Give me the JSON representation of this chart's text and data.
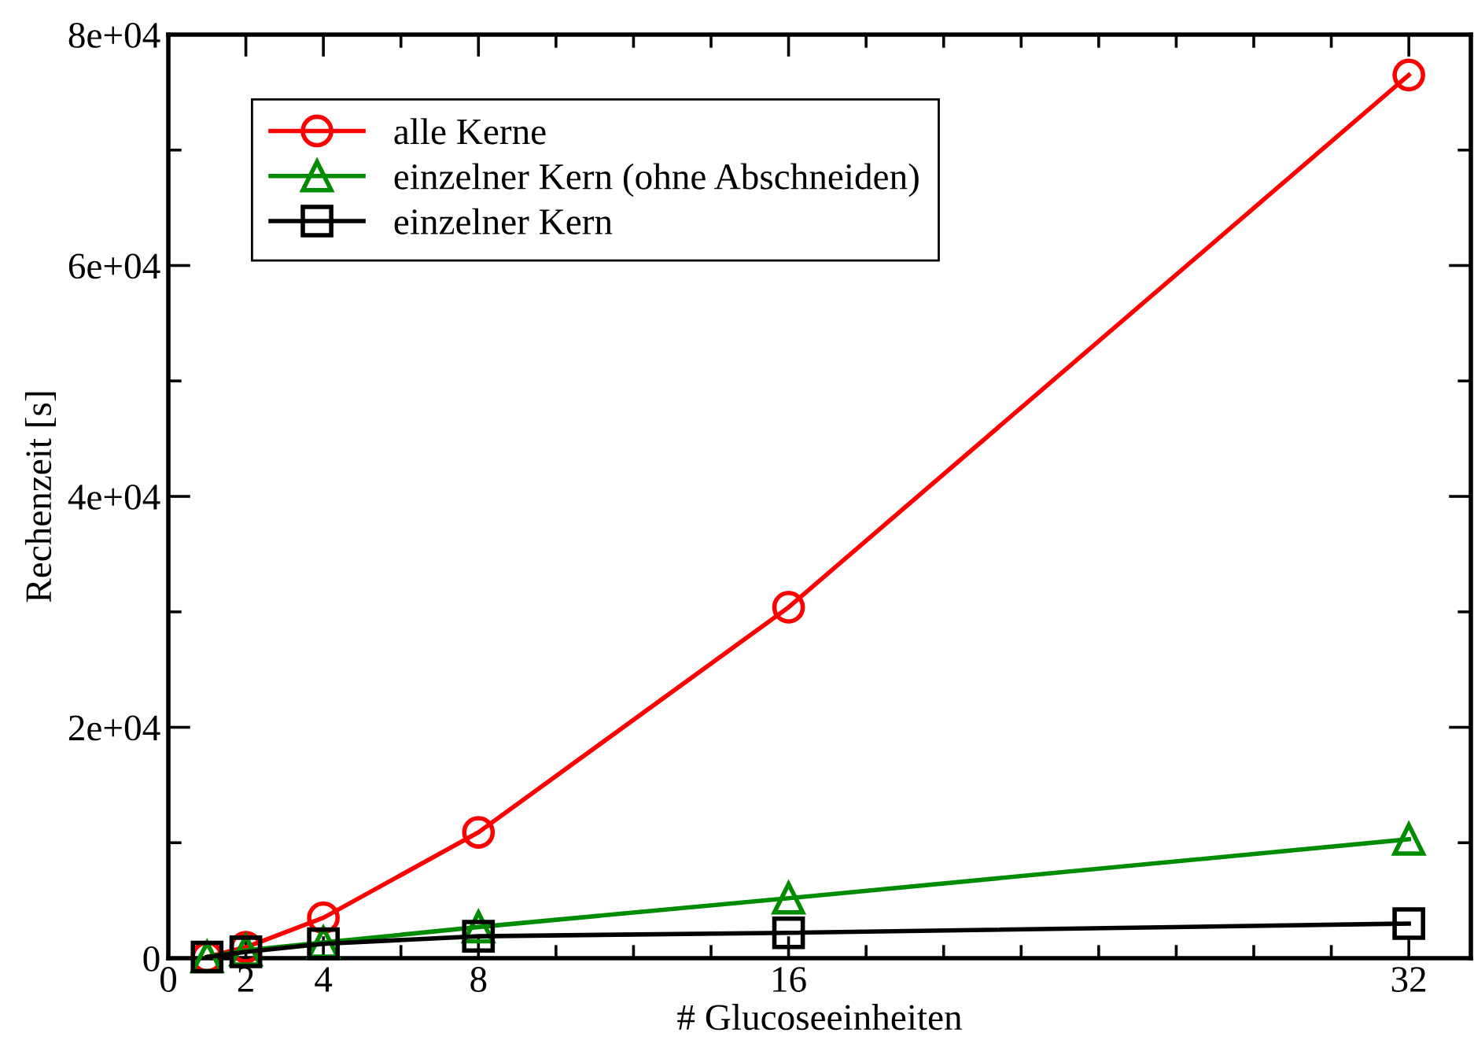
{
  "chart_data": {
    "type": "line",
    "xlabel": "# Glucoseeinheiten",
    "ylabel": "Rechenzeit [s]",
    "x": [
      1,
      2,
      4,
      8,
      16,
      32
    ],
    "series": [
      {
        "name": "alle Kerne",
        "color": "#ff0000",
        "marker": "circle",
        "values": [
          100,
          950,
          3500,
          10900,
          30400,
          76500
        ]
      },
      {
        "name": "einzelner Kern (ohne Abschneiden)",
        "color": "#008c00",
        "marker": "triangle",
        "values": [
          100,
          680,
          1360,
          2700,
          5200,
          10300
        ]
      },
      {
        "name": "einzelner Kern",
        "color": "#000000",
        "marker": "square",
        "values": [
          100,
          550,
          1250,
          1900,
          2200,
          3000
        ]
      }
    ],
    "xlim": [
      0,
      33.6
    ],
    "ylim": [
      0,
      80000
    ],
    "xticks": [
      0,
      2,
      4,
      {
        "value": 6,
        "label": null
      },
      8,
      {
        "value": 10,
        "label": null
      },
      {
        "value": 12,
        "label": null
      },
      {
        "value": 14,
        "label": null
      },
      16,
      {
        "value": 18,
        "label": null
      },
      {
        "value": 20,
        "label": null
      },
      {
        "value": 22,
        "label": null
      },
      {
        "value": 24,
        "label": null
      },
      {
        "value": 26,
        "label": null
      },
      {
        "value": 28,
        "label": null
      },
      {
        "value": 30,
        "label": null
      },
      32
    ],
    "yticks": [
      0,
      {
        "value": 10000,
        "label": null
      },
      {
        "value": 20000,
        "label": "2e+04"
      },
      {
        "value": 30000,
        "label": null
      },
      {
        "value": 40000,
        "label": "4e+04"
      },
      {
        "value": 50000,
        "label": null
      },
      {
        "value": 60000,
        "label": "6e+04"
      },
      {
        "value": 70000,
        "label": null
      },
      {
        "value": 80000,
        "label": "8e+04"
      }
    ],
    "legend": "top left",
    "grid": false,
    "line_style": "solid"
  }
}
